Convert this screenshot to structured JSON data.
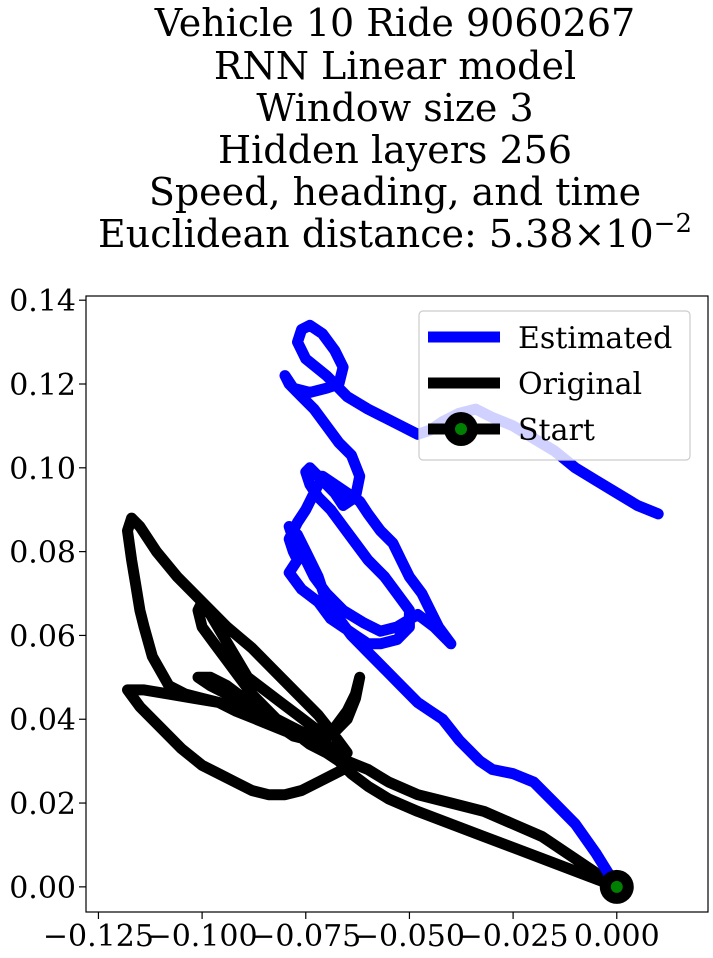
{
  "chart_data": {
    "type": "line",
    "title_lines": [
      "Vehicle 10 Ride 9060267",
      "RNN Linear model",
      "Window size 3",
      "Hidden layers 256",
      "Speed, heading, and time"
    ],
    "title_metric_prefix": "Euclidean distance: ",
    "title_metric_mantissa": "5.38",
    "title_metric_times": "×10",
    "title_metric_exponent": "−2",
    "xlim": [
      -0.128,
      0.022
    ],
    "ylim": [
      -0.006,
      0.141
    ],
    "x_ticks": [
      -0.125,
      -0.1,
      -0.075,
      -0.05,
      -0.025,
      0.0
    ],
    "x_tick_labels": [
      "−0.125",
      "−0.100",
      "−0.075",
      "−0.050",
      "−0.025",
      "0.000"
    ],
    "y_ticks": [
      0.0,
      0.02,
      0.04,
      0.06,
      0.08,
      0.1,
      0.12,
      0.14
    ],
    "y_tick_labels": [
      "0.00",
      "0.02",
      "0.04",
      "0.06",
      "0.08",
      "0.10",
      "0.12",
      "0.14"
    ],
    "legend_position": "upper right",
    "colors": {
      "estimated": "#0000ff",
      "original": "#000000",
      "start_outer": "#000000",
      "start_inner": "#008000"
    },
    "series": [
      {
        "name": "Estimated",
        "x": [
          0.0,
          -0.005,
          -0.01,
          -0.015,
          -0.02,
          -0.025,
          -0.03,
          -0.033,
          -0.038,
          -0.042,
          -0.045,
          -0.048,
          -0.052,
          -0.056,
          -0.06,
          -0.064,
          -0.067,
          -0.07,
          -0.072,
          -0.075,
          -0.077,
          -0.079,
          -0.078,
          -0.075,
          -0.073,
          -0.07,
          -0.066,
          -0.061,
          -0.057,
          -0.053,
          -0.048,
          -0.044,
          -0.042,
          -0.04,
          -0.043,
          -0.045,
          -0.047,
          -0.05,
          -0.052,
          -0.054,
          -0.057,
          -0.06,
          -0.062,
          -0.065,
          -0.068,
          -0.071,
          -0.073,
          -0.075,
          -0.077,
          -0.079,
          -0.078,
          -0.077,
          -0.079,
          -0.076,
          -0.072,
          -0.069,
          -0.066,
          -0.063,
          -0.06,
          -0.057,
          -0.053,
          -0.05,
          -0.05,
          -0.053,
          -0.056,
          -0.06,
          -0.063,
          -0.066,
          -0.069,
          -0.072,
          -0.074,
          -0.075,
          -0.074,
          -0.071,
          -0.068,
          -0.066,
          -0.063,
          -0.062,
          -0.064,
          -0.067,
          -0.07,
          -0.073,
          -0.076,
          -0.079,
          -0.08,
          -0.078,
          -0.074,
          -0.07,
          -0.067,
          -0.066,
          -0.068,
          -0.071,
          -0.074,
          -0.076,
          -0.077,
          -0.075,
          -0.07,
          -0.065,
          -0.06,
          -0.056,
          -0.052,
          -0.048,
          -0.045,
          -0.042,
          -0.038,
          -0.034,
          -0.03,
          -0.025,
          -0.02,
          -0.015,
          -0.01,
          -0.005,
          0.0,
          0.005,
          0.01
        ],
        "y": [
          0.0,
          0.008,
          0.015,
          0.02,
          0.025,
          0.027,
          0.028,
          0.03,
          0.035,
          0.04,
          0.042,
          0.044,
          0.048,
          0.052,
          0.056,
          0.06,
          0.064,
          0.068,
          0.074,
          0.08,
          0.084,
          0.086,
          0.083,
          0.078,
          0.074,
          0.07,
          0.066,
          0.063,
          0.061,
          0.062,
          0.065,
          0.062,
          0.06,
          0.058,
          0.062,
          0.066,
          0.07,
          0.074,
          0.078,
          0.082,
          0.085,
          0.089,
          0.092,
          0.094,
          0.096,
          0.098,
          0.094,
          0.09,
          0.087,
          0.083,
          0.08,
          0.078,
          0.075,
          0.071,
          0.068,
          0.064,
          0.062,
          0.06,
          0.058,
          0.058,
          0.059,
          0.062,
          0.066,
          0.07,
          0.074,
          0.078,
          0.082,
          0.086,
          0.09,
          0.093,
          0.096,
          0.099,
          0.1,
          0.097,
          0.094,
          0.091,
          0.093,
          0.098,
          0.103,
          0.106,
          0.11,
          0.114,
          0.117,
          0.12,
          0.122,
          0.119,
          0.118,
          0.119,
          0.12,
          0.124,
          0.128,
          0.132,
          0.134,
          0.133,
          0.13,
          0.126,
          0.122,
          0.117,
          0.114,
          0.112,
          0.11,
          0.108,
          0.109,
          0.111,
          0.113,
          0.114,
          0.112,
          0.11,
          0.107,
          0.104,
          0.1,
          0.097,
          0.094,
          0.091,
          0.089
        ]
      },
      {
        "name": "Original",
        "x": [
          0.0,
          -0.006,
          -0.012,
          -0.018,
          -0.025,
          -0.032,
          -0.04,
          -0.048,
          -0.055,
          -0.06,
          -0.065,
          -0.068,
          -0.071,
          -0.075,
          -0.078,
          -0.082,
          -0.086,
          -0.09,
          -0.094,
          -0.098,
          -0.101,
          -0.098,
          -0.094,
          -0.09,
          -0.086,
          -0.082,
          -0.078,
          -0.074,
          -0.07,
          -0.067,
          -0.065,
          -0.066,
          -0.068,
          -0.072,
          -0.076,
          -0.08,
          -0.084,
          -0.088,
          -0.092,
          -0.096,
          -0.1,
          -0.105,
          -0.11,
          -0.115,
          -0.118,
          -0.114,
          -0.108,
          -0.102,
          -0.096,
          -0.09,
          -0.085,
          -0.081,
          -0.078,
          -0.074,
          -0.071,
          -0.068,
          -0.065,
          -0.063,
          -0.062,
          -0.063,
          -0.065,
          -0.068,
          -0.07,
          -0.073,
          -0.077,
          -0.081,
          -0.085,
          -0.089,
          -0.092,
          -0.095,
          -0.098,
          -0.1,
          -0.101,
          -0.1,
          -0.097,
          -0.094,
          -0.091,
          -0.088,
          -0.085,
          -0.082,
          -0.078,
          -0.074,
          -0.07,
          -0.067,
          -0.065,
          -0.068,
          -0.072,
          -0.077,
          -0.082,
          -0.088,
          -0.094,
          -0.1,
          -0.106,
          -0.111,
          -0.115,
          -0.117,
          -0.118,
          -0.117,
          -0.116,
          -0.115,
          -0.114,
          -0.112,
          -0.108,
          -0.104,
          -0.1,
          -0.096,
          -0.092,
          -0.087,
          -0.082,
          -0.077,
          -0.073,
          -0.07,
          -0.067,
          -0.064,
          -0.06,
          -0.055,
          -0.048,
          -0.04,
          -0.032,
          -0.024,
          -0.016,
          -0.008,
          0.0
        ],
        "y": [
          0.0,
          0.004,
          0.008,
          0.012,
          0.015,
          0.018,
          0.02,
          0.022,
          0.025,
          0.028,
          0.03,
          0.032,
          0.034,
          0.036,
          0.038,
          0.04,
          0.042,
          0.045,
          0.048,
          0.05,
          0.05,
          0.048,
          0.046,
          0.044,
          0.042,
          0.04,
          0.038,
          0.036,
          0.034,
          0.032,
          0.03,
          0.028,
          0.027,
          0.025,
          0.023,
          0.022,
          0.022,
          0.023,
          0.025,
          0.027,
          0.029,
          0.033,
          0.038,
          0.043,
          0.047,
          0.047,
          0.046,
          0.045,
          0.044,
          0.042,
          0.04,
          0.038,
          0.036,
          0.035,
          0.035,
          0.037,
          0.04,
          0.045,
          0.05,
          0.046,
          0.042,
          0.038,
          0.036,
          0.038,
          0.041,
          0.044,
          0.047,
          0.05,
          0.055,
          0.06,
          0.065,
          0.068,
          0.066,
          0.062,
          0.058,
          0.054,
          0.05,
          0.046,
          0.043,
          0.04,
          0.037,
          0.034,
          0.032,
          0.03,
          0.032,
          0.036,
          0.041,
          0.046,
          0.051,
          0.057,
          0.062,
          0.068,
          0.074,
          0.08,
          0.086,
          0.088,
          0.085,
          0.078,
          0.072,
          0.066,
          0.062,
          0.055,
          0.048,
          0.046,
          0.045,
          0.044,
          0.042,
          0.04,
          0.038,
          0.036,
          0.034,
          0.032,
          0.03,
          0.027,
          0.024,
          0.021,
          0.018,
          0.015,
          0.012,
          0.009,
          0.006,
          0.003,
          0.0
        ]
      },
      {
        "name": "Start",
        "x": [
          0.0
        ],
        "y": [
          0.0
        ]
      }
    ]
  }
}
